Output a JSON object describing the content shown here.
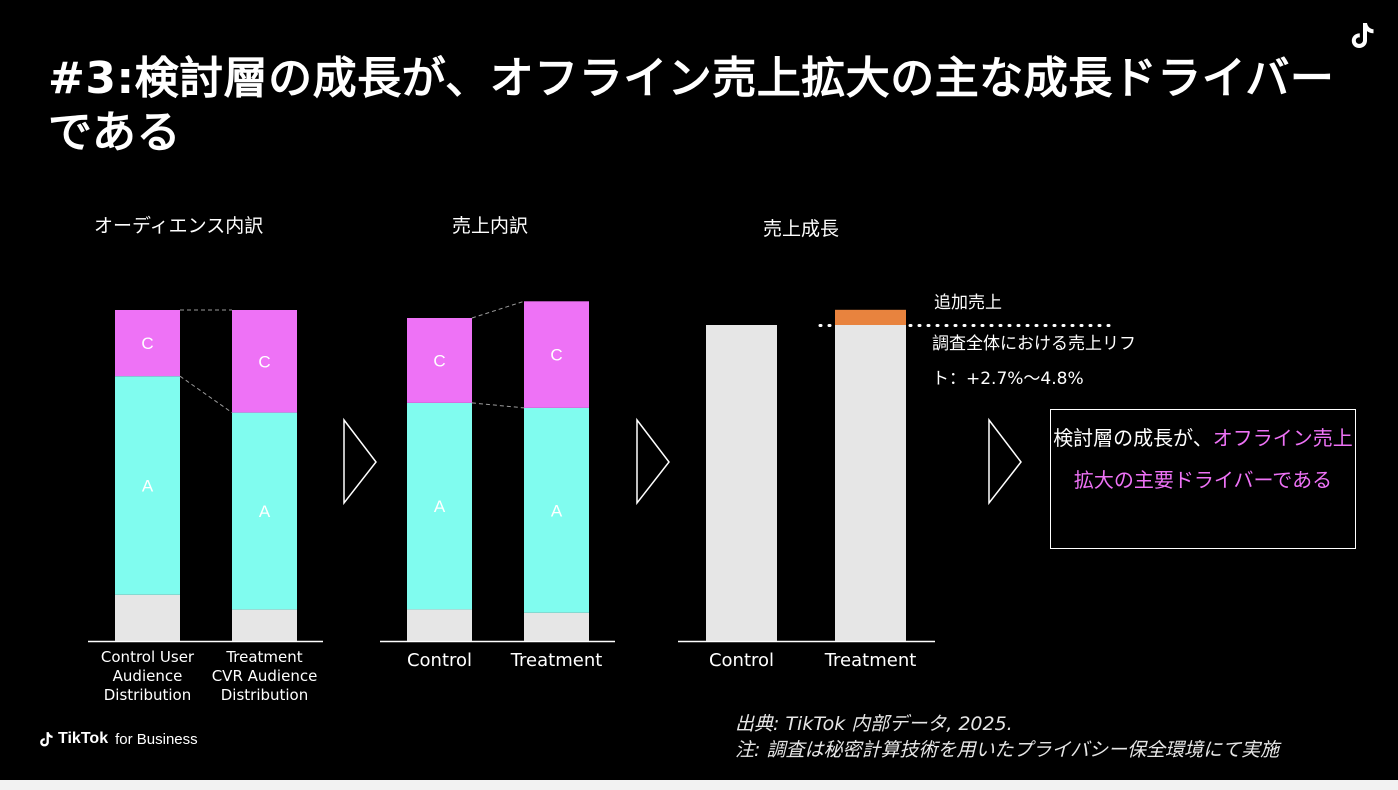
{
  "title": "#3:検討層の成長が、オフライン売上拡大の主な成長ドライバーである",
  "sections": {
    "audience": "オーディエンス内訳",
    "sales_breakdown": "売上内訳",
    "sales_growth": "売上成長"
  },
  "annotation": {
    "incremental": "追加売上",
    "lift_line1": "調査全体における売上リフ",
    "lift_line2": "ト：+2.7%〜4.8%"
  },
  "result_box": {
    "text_plain": "検討層の成長が、",
    "text_highlight": "オフライン売上拡大の主要ドライバーである"
  },
  "brand": {
    "name": "TikTok",
    "suffix": "for Business"
  },
  "source": {
    "line1": "出典: TikTok 内部データ, 2025.",
    "line2": "注: 調査は秘密計算技術を用いたプライバシー保全環境にて実施"
  },
  "colors": {
    "segment_c": "#ee72f6",
    "segment_a": "#80fcef",
    "segment_other": "#e6e6e6",
    "incremental": "#e8833e",
    "highlight_text": "#ee72f6",
    "background": "#000000"
  },
  "chart_data": [
    {
      "type": "bar",
      "stacked": true,
      "title": "オーディエンス内訳",
      "categories": [
        "Control User\nAudience\nDistribution",
        "Treatment\nCVR Audience\nDistribution"
      ],
      "series": [
        {
          "name": "",
          "values": [
            14,
            9.5
          ]
        },
        {
          "name": "A",
          "values": [
            66,
            59.5
          ]
        },
        {
          "name": "C",
          "values": [
            20,
            31
          ]
        }
      ],
      "ylim": [
        0,
        100
      ]
    },
    {
      "type": "bar",
      "stacked": true,
      "title": "売上内訳",
      "categories": [
        "Control",
        "Treatment"
      ],
      "series": [
        {
          "name": "",
          "values": [
            9.5,
            8.5
          ]
        },
        {
          "name": "A",
          "values": [
            62,
            61.5
          ]
        },
        {
          "name": "C",
          "values": [
            25.5,
            32
          ]
        }
      ],
      "ylim": [
        0,
        100
      ]
    },
    {
      "type": "bar",
      "stacked": true,
      "title": "売上成長",
      "categories": [
        "Control",
        "Treatment"
      ],
      "series": [
        {
          "name": "",
          "values": [
            100,
            100
          ]
        },
        {
          "name": "追加売上",
          "values": [
            0,
            4.8
          ]
        }
      ],
      "ylim": [
        0,
        105
      ]
    }
  ]
}
